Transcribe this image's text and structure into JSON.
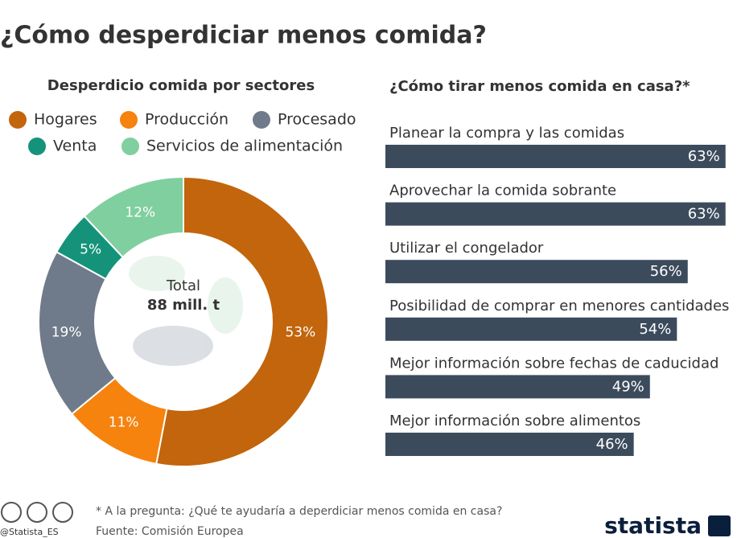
{
  "title": "¿Cómo desperdiciar menos comida?",
  "chart_data": [
    {
      "type": "donut",
      "title": "Desperdicio comida por sectores",
      "categories": [
        "Hogares",
        "Producción",
        "Procesado",
        "Venta",
        "Servicios de alimentación"
      ],
      "values": [
        53,
        11,
        19,
        5,
        12
      ],
      "value_labels": [
        "53%",
        "11%",
        "19%",
        "5%",
        "12%"
      ],
      "colors": [
        "#c2650c",
        "#f5830d",
        "#6f7b8a",
        "#14937a",
        "#80cf9f"
      ],
      "center_label": "Total",
      "center_value": "88 mill. t"
    },
    {
      "type": "bar",
      "title": "¿Cómo tirar menos comida en casa?*",
      "categories": [
        "Planear la compra y las comidas",
        "Aprovechar la comida sobrante",
        "Utilizar el congelador",
        "Posibilidad de comprar en menores cantidades",
        "Mejor información sobre fechas de caducidad",
        "Mejor información sobre alimentos"
      ],
      "values": [
        63,
        63,
        56,
        54,
        49,
        46
      ],
      "value_labels": [
        "63%",
        "63%",
        "56%",
        "54%",
        "49%",
        "46%"
      ],
      "color": "#3c4b5c"
    }
  ],
  "footnote": "* A la pregunta: ¿Qué te ayudaría a deperdiciar menos comida en casa?",
  "source": "Fuente: Comisión Europea",
  "handle": "@Statista_ES",
  "brand": "statista"
}
